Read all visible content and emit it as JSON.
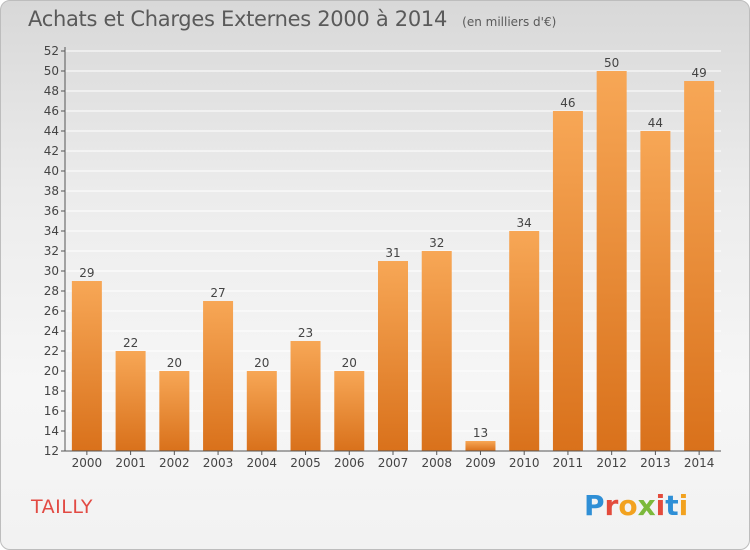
{
  "header": {
    "title": "Achats et Charges Externes 2000 à 2014",
    "subtitle": "(en milliers d'€)"
  },
  "footer": {
    "place": "TAILLY",
    "logo_text": "Proxiti",
    "logo_colors": [
      "#2f8fd6",
      "#e34b3c",
      "#f2a21f",
      "#7cb93b",
      "#e34b3c",
      "#2f8fd6",
      "#f2a21f"
    ]
  },
  "chart_data": {
    "type": "bar",
    "title": "Achats et Charges Externes 2000 à 2014",
    "subtitle": "(en milliers d'€)",
    "categories": [
      "2000",
      "2001",
      "2002",
      "2003",
      "2004",
      "2005",
      "2006",
      "2007",
      "2008",
      "2009",
      "2010",
      "2011",
      "2012",
      "2013",
      "2014"
    ],
    "values": [
      29,
      22,
      20,
      27,
      20,
      23,
      20,
      31,
      32,
      13,
      34,
      46,
      50,
      44,
      49
    ],
    "ylim": [
      12,
      52
    ],
    "yticks": [
      12,
      14,
      16,
      18,
      20,
      22,
      24,
      26,
      28,
      30,
      32,
      34,
      36,
      38,
      40,
      42,
      44,
      46,
      48,
      50,
      52
    ],
    "grid": true,
    "data_labels": true,
    "colors": {
      "bar_top": "#f7a756",
      "bar_bottom": "#d9711b",
      "grid": "#ffffff",
      "axis": "#555555"
    }
  }
}
